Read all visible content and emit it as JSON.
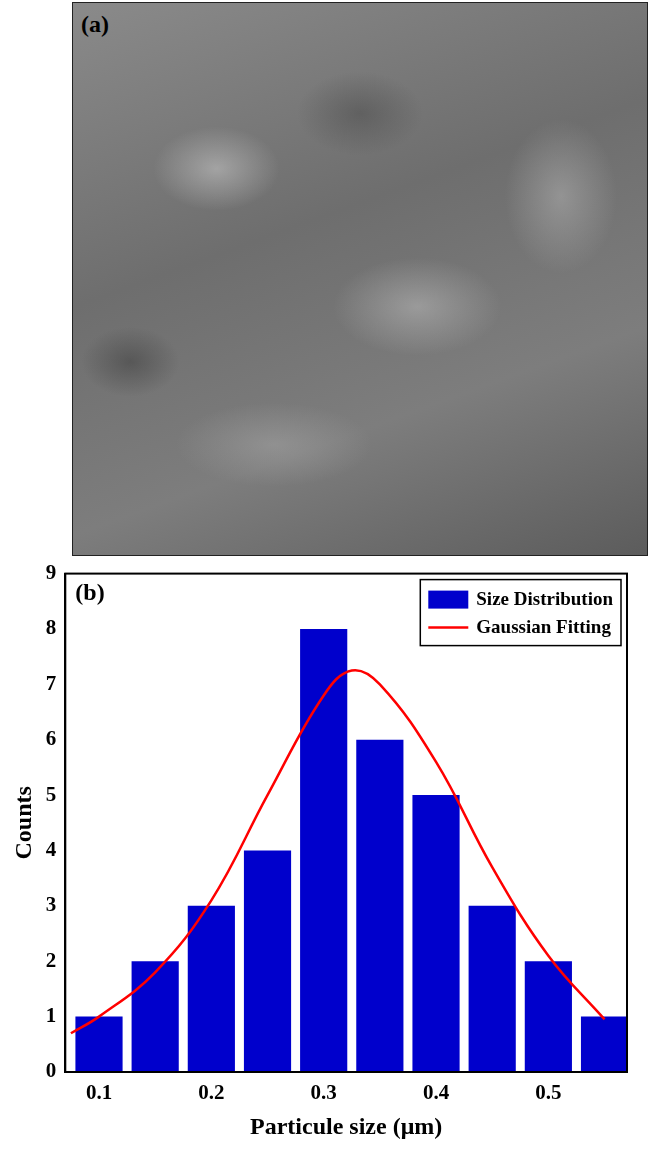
{
  "image_panel": {
    "label": "(a)"
  },
  "chart_data": {
    "type": "bar",
    "title": "(b)",
    "x_label": "Particule size (μm)",
    "y_label": "Counts",
    "bins": [
      0.075,
      0.125,
      0.175,
      0.225,
      0.275,
      0.325,
      0.375,
      0.425,
      0.475,
      0.525,
      0.575
    ],
    "series": [
      {
        "name": "Size Distribution",
        "type": "bar",
        "color": "#0000cc",
        "values": [
          1,
          2,
          3,
          4,
          8,
          6,
          5,
          3,
          2,
          1
        ]
      },
      {
        "name": "Gaussian Fitting",
        "type": "line",
        "color": "#ff0000",
        "x": [
          0.075,
          0.1,
          0.15,
          0.2,
          0.25,
          0.3,
          0.325,
          0.35,
          0.4,
          0.45,
          0.5,
          0.55
        ],
        "values": [
          0.7,
          1.0,
          1.8,
          3.1,
          5.0,
          6.8,
          7.25,
          7.0,
          5.6,
          3.7,
          2.1,
          0.95
        ]
      }
    ],
    "xlim": [
      0.07,
      0.57
    ],
    "xticks": [
      0.1,
      0.2,
      0.3,
      0.4,
      0.5
    ],
    "ylim": [
      0,
      9
    ],
    "yticks": [
      0,
      1,
      2,
      3,
      4,
      5,
      6,
      7,
      8,
      9
    ],
    "grid": false,
    "legend": "upper right"
  }
}
